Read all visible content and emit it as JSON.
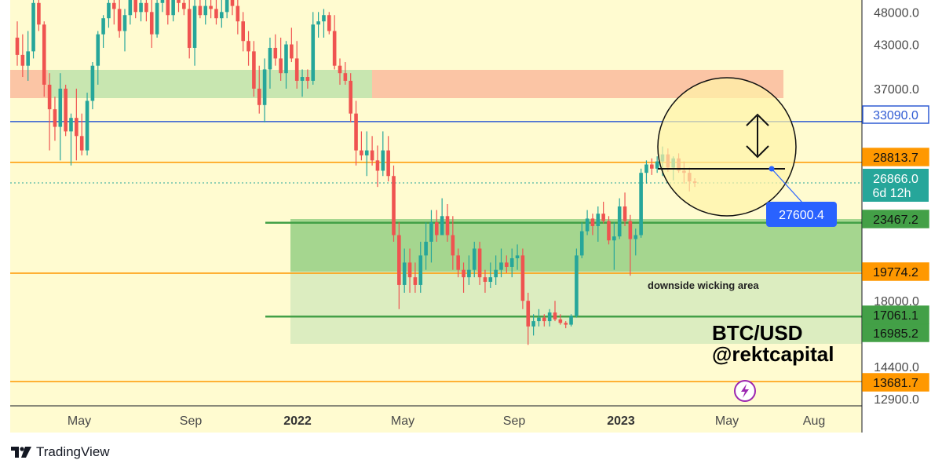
{
  "chart_data": {
    "type": "candlestick",
    "symbol_title": "BTC/USD",
    "author": "@rektcapital",
    "annotation": "downside wicking area",
    "callout_value": "27600.4",
    "x_tick_labels": [
      {
        "label": "May",
        "bold": false
      },
      {
        "label": "Sep",
        "bold": false
      },
      {
        "label": "2022",
        "bold": true
      },
      {
        "label": "May",
        "bold": false
      },
      {
        "label": "Sep",
        "bold": false
      },
      {
        "label": "2023",
        "bold": true
      },
      {
        "label": "May",
        "bold": false
      },
      {
        "label": "Aug",
        "bold": false
      }
    ],
    "y_ticks": [
      "48000.0",
      "43000.0",
      "37000.0",
      "18000.0",
      "14400.0",
      "12900.0"
    ],
    "y_scale": "log",
    "ylim": [
      12600,
      50000
    ],
    "price_levels": [
      {
        "value": 33090.0,
        "label": "33090.0",
        "color": "#2f5bd3"
      },
      {
        "value": 28813.7,
        "label": "28813.7",
        "color": "#ff9800"
      },
      {
        "value": 23467.2,
        "label": "23467.2",
        "color": "#43a047"
      },
      {
        "value": 19774.2,
        "label": "19774.2",
        "color": "#ff9800"
      },
      {
        "value": 17061.1,
        "label": "17061.1",
        "color": "#43a047"
      },
      {
        "value": 16985.2,
        "label": "16985.2",
        "color": "#43a047"
      },
      {
        "value": 13681.7,
        "label": "13681.7",
        "color": "#ff9800"
      }
    ],
    "last_price": {
      "value": 26866.0,
      "label": "26866.0",
      "countdown": "6d 12h",
      "color": "#26a69a"
    },
    "colors": {
      "up": "#26a69a",
      "down": "#ef5350",
      "background": "#fffbd0"
    },
    "candles": [
      [
        44000,
        46500,
        40000,
        41500
      ],
      [
        41500,
        44500,
        38500,
        40000
      ],
      [
        40000,
        45000,
        38000,
        42000
      ],
      [
        42000,
        50000,
        41000,
        49500
      ],
      [
        49500,
        52000,
        45000,
        46000
      ],
      [
        46000,
        46500,
        36000,
        37500
      ],
      [
        37500,
        39000,
        30000,
        34500
      ],
      [
        34500,
        36000,
        31000,
        32500
      ],
      [
        32500,
        39000,
        29000,
        37000
      ],
      [
        37000,
        37500,
        31500,
        32000
      ],
      [
        32000,
        34000,
        28500,
        33500
      ],
      [
        33500,
        37000,
        29000,
        31500
      ],
      [
        31500,
        34000,
        29500,
        30000
      ],
      [
        30000,
        36500,
        29500,
        35500
      ],
      [
        35500,
        40500,
        34500,
        40000
      ],
      [
        40000,
        45000,
        37500,
        44500
      ],
      [
        44500,
        47500,
        42500,
        47000
      ],
      [
        47000,
        50000,
        45500,
        49500
      ],
      [
        49500,
        51000,
        46000,
        48500
      ],
      [
        48500,
        50000,
        44000,
        45000
      ],
      [
        45000,
        48500,
        42000,
        47500
      ],
      [
        47500,
        52000,
        46000,
        50000
      ],
      [
        50000,
        52000,
        47000,
        48000
      ],
      [
        48000,
        52000,
        46500,
        49500
      ],
      [
        49500,
        52000,
        46500,
        48000
      ],
      [
        48000,
        50000,
        42500,
        44500
      ],
      [
        44500,
        50500,
        44000,
        49500
      ],
      [
        49500,
        51000,
        48000,
        50500
      ],
      [
        50500,
        52000,
        46000,
        47500
      ],
      [
        47500,
        51000,
        46500,
        50000
      ],
      [
        50000,
        51000,
        48000,
        49500
      ],
      [
        49500,
        52000,
        47500,
        48500
      ],
      [
        48500,
        51000,
        41000,
        42500
      ],
      [
        42500,
        50000,
        40000,
        49000
      ],
      [
        49000,
        51000,
        47000,
        47500
      ],
      [
        47500,
        50000,
        46000,
        49000
      ],
      [
        49000,
        52000,
        47000,
        48500
      ],
      [
        48500,
        50000,
        46000,
        47000
      ],
      [
        47000,
        50000,
        45500,
        48000
      ],
      [
        48000,
        52000,
        47000,
        50500
      ],
      [
        50500,
        52000,
        47500,
        49000
      ],
      [
        49000,
        51000,
        44500,
        46500
      ],
      [
        46500,
        48000,
        42000,
        43500
      ],
      [
        43500,
        45000,
        40000,
        42000
      ],
      [
        42000,
        43500,
        36000,
        37000
      ],
      [
        37000,
        40000,
        34000,
        35000
      ],
      [
        35000,
        41000,
        33000,
        39500
      ],
      [
        39500,
        44000,
        37000,
        42500
      ],
      [
        42500,
        44500,
        40000,
        41000
      ],
      [
        41000,
        44000,
        38000,
        39000
      ],
      [
        39000,
        43500,
        37000,
        43000
      ],
      [
        43000,
        45500,
        40500,
        41000
      ],
      [
        41000,
        43500,
        37000,
        38000
      ],
      [
        38000,
        39500,
        36000,
        38500
      ],
      [
        38500,
        39500,
        37000,
        38000
      ],
      [
        38000,
        48000,
        37500,
        46000
      ],
      [
        46000,
        48000,
        44000,
        46500
      ],
      [
        46500,
        48500,
        44000,
        47500
      ],
      [
        47500,
        48000,
        44500,
        45000
      ],
      [
        45000,
        47500,
        39500,
        40000
      ],
      [
        40000,
        41000,
        37500,
        39000
      ],
      [
        39000,
        40500,
        37500,
        38000
      ],
      [
        38000,
        39000,
        33000,
        34000
      ],
      [
        34000,
        35500,
        28500,
        30000
      ],
      [
        30000,
        32000,
        29000,
        29500
      ],
      [
        29500,
        32000,
        27500,
        30000
      ],
      [
        30000,
        31500,
        28500,
        29000
      ],
      [
        29000,
        30500,
        26500,
        28000
      ],
      [
        28000,
        32000,
        27500,
        30000
      ],
      [
        30000,
        31500,
        27000,
        27500
      ],
      [
        27500,
        28500,
        22000,
        22500
      ],
      [
        22500,
        23500,
        17500,
        19000
      ],
      [
        19000,
        21500,
        18500,
        20500
      ],
      [
        20500,
        21500,
        18500,
        19500
      ],
      [
        19500,
        20500,
        18500,
        19000
      ],
      [
        19000,
        22000,
        18500,
        21000
      ],
      [
        21000,
        23500,
        20000,
        22000
      ],
      [
        22000,
        24500,
        20500,
        23500
      ],
      [
        23500,
        24500,
        22000,
        22500
      ],
      [
        22500,
        25500,
        22500,
        24000
      ],
      [
        24000,
        25000,
        22000,
        22500
      ],
      [
        22500,
        24000,
        20000,
        21000
      ],
      [
        21000,
        21500,
        19500,
        20000
      ],
      [
        20000,
        20500,
        18500,
        19500
      ],
      [
        19500,
        21000,
        19000,
        20000
      ],
      [
        20000,
        22000,
        19500,
        21500
      ],
      [
        21500,
        22000,
        19000,
        19500
      ],
      [
        19500,
        20000,
        18500,
        19200
      ],
      [
        19200,
        20500,
        18800,
        19500
      ],
      [
        19500,
        21000,
        19000,
        20000
      ],
      [
        20000,
        21500,
        19500,
        20500
      ],
      [
        20500,
        21000,
        19800,
        20200
      ],
      [
        20200,
        21500,
        19500,
        20800
      ],
      [
        20800,
        21800,
        20000,
        21000
      ],
      [
        21000,
        21500,
        17500,
        18000
      ],
      [
        18000,
        18500,
        15500,
        16500
      ],
      [
        16500,
        17200,
        16000,
        16800
      ],
      [
        16800,
        17500,
        16500,
        17000
      ],
      [
        17000,
        17200,
        16500,
        16800
      ],
      [
        16800,
        17500,
        16500,
        17300
      ],
      [
        17300,
        18000,
        16800,
        16900
      ],
      [
        16900,
        17200,
        16600,
        16700
      ],
      [
        16700,
        16800,
        16400,
        16600
      ],
      [
        16600,
        17200,
        16500,
        17100
      ],
      [
        17100,
        21500,
        17000,
        21000
      ],
      [
        21000,
        23500,
        20800,
        22800
      ],
      [
        22800,
        24500,
        22500,
        23800
      ],
      [
        23800,
        24200,
        22500,
        23200
      ],
      [
        23200,
        24800,
        22000,
        24200
      ],
      [
        24200,
        25200,
        23400,
        23600
      ],
      [
        23600,
        24000,
        21800,
        22100
      ],
      [
        22100,
        23500,
        20000,
        22400
      ],
      [
        22400,
        25500,
        22200,
        24800
      ],
      [
        24800,
        26000,
        23200,
        23600
      ],
      [
        23600,
        24100,
        19600,
        22200
      ],
      [
        22200,
        23000,
        21000,
        22500
      ],
      [
        22500,
        28200,
        22300,
        27800
      ],
      [
        27800,
        29000,
        26800,
        28600
      ],
      [
        28600,
        29200,
        27600,
        28200
      ],
      [
        28200,
        29400,
        27800,
        28900
      ],
      [
        28900,
        30400,
        27500,
        29600
      ],
      [
        29600,
        30200,
        27900,
        28300
      ],
      [
        28300,
        29400,
        27100,
        29200
      ],
      [
        29200,
        29700,
        27800,
        28000
      ],
      [
        28000,
        28900,
        26800,
        27800
      ],
      [
        27800,
        28300,
        26100,
        27000
      ],
      [
        27000,
        27300,
        26500,
        26866
      ]
    ]
  }
}
